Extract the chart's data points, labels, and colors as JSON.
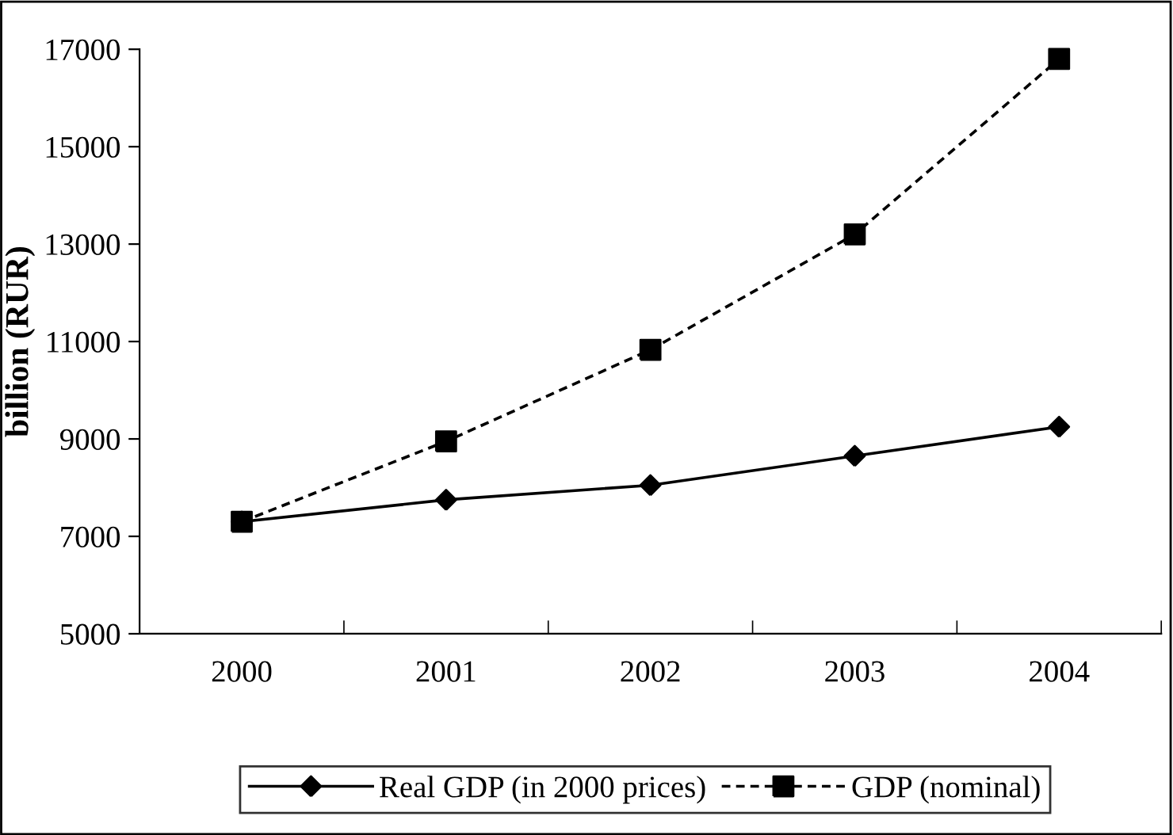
{
  "chart_data": {
    "type": "line",
    "ylabel": "billion (RUR)",
    "categories": [
      "2000",
      "2001",
      "2002",
      "2003",
      "2004"
    ],
    "series": [
      {
        "name": "Real GDP (in 2000 prices)",
        "color": "#000000",
        "marker": "diamond",
        "line_style": "solid",
        "values": [
          7300,
          7750,
          8050,
          8650,
          9250
        ]
      },
      {
        "name": "GDP (nominal)",
        "color": "#000000",
        "marker": "square",
        "line_style": "dashed",
        "values": [
          7300,
          8950,
          10830,
          13200,
          16800
        ]
      }
    ],
    "ylim": [
      5000,
      17000
    ],
    "yticks": [
      5000,
      7000,
      9000,
      11000,
      13000,
      15000,
      17000
    ],
    "grid": false,
    "legend": "bottom"
  }
}
